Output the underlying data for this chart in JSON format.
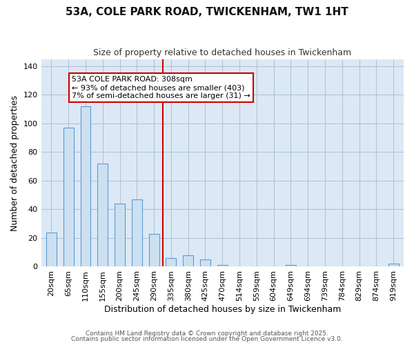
{
  "title": "53A, COLE PARK ROAD, TWICKENHAM, TW1 1HT",
  "subtitle": "Size of property relative to detached houses in Twickenham",
  "xlabel": "Distribution of detached houses by size in Twickenham",
  "ylabel": "Number of detached properties",
  "categories": [
    "20sqm",
    "65sqm",
    "110sqm",
    "155sqm",
    "200sqm",
    "245sqm",
    "290sqm",
    "335sqm",
    "380sqm",
    "425sqm",
    "470sqm",
    "514sqm",
    "559sqm",
    "604sqm",
    "649sqm",
    "694sqm",
    "739sqm",
    "784sqm",
    "829sqm",
    "874sqm",
    "919sqm"
  ],
  "values": [
    24,
    97,
    112,
    72,
    44,
    47,
    23,
    6,
    8,
    5,
    1,
    0,
    0,
    0,
    1,
    0,
    0,
    0,
    0,
    0,
    2
  ],
  "bar_color": "#cce0f0",
  "bar_edge_color": "#5b9bd5",
  "bar_edge_width": 0.8,
  "grid_color": "#b0c4d8",
  "plot_bg_color": "#dce9f5",
  "fig_bg_color": "#ffffff",
  "annotation_line1": "53A COLE PARK ROAD: 308sqm",
  "annotation_line2": "← 93% of detached houses are smaller (403)",
  "annotation_line3": "7% of semi-detached houses are larger (31) →",
  "annotation_box_bg": "#ffffff",
  "annotation_box_edge": "#cc0000",
  "vline_color": "#cc0000",
  "vline_x": 6.5,
  "ylim": [
    0,
    145
  ],
  "yticks": [
    0,
    20,
    40,
    60,
    80,
    100,
    120,
    140
  ],
  "footer1": "Contains HM Land Registry data © Crown copyright and database right 2025.",
  "footer2": "Contains public sector information licensed under the Open Government Licence v3.0.",
  "title_fontsize": 11,
  "subtitle_fontsize": 9,
  "xlabel_fontsize": 9,
  "ylabel_fontsize": 9,
  "tick_fontsize": 8,
  "ann_fontsize": 8,
  "footer_fontsize": 6.5
}
